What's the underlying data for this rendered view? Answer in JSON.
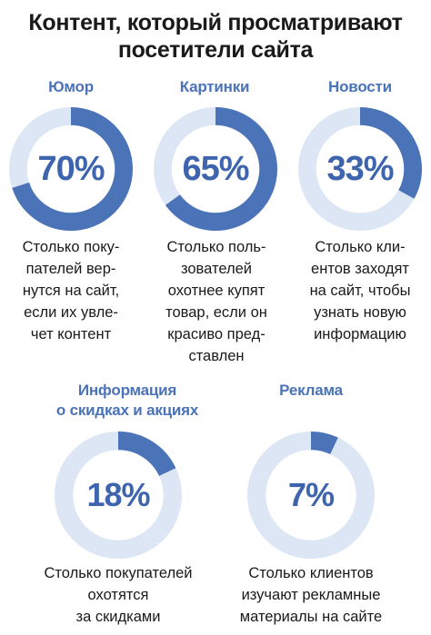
{
  "title": {
    "line1": "Контент, который просматривают",
    "line2": "посетители сайта"
  },
  "colors": {
    "filled": "#4a73b8",
    "track": "#dce6f4",
    "label": "#4a73b8",
    "percent": "#3d64ad"
  },
  "items": [
    {
      "label": "Юмор",
      "percent_text": "70%",
      "description": "Столько поку-\nпателей вер-\nнутся на сайт,\nесли их увле-\nчет контент"
    },
    {
      "label": "Картинки",
      "percent_text": "65%",
      "description": "Столько поль-\nзователей\nохотнее купят\nтовар, если он\nкрасиво пред-\nставлен"
    },
    {
      "label": "Новости",
      "percent_text": "33%",
      "description": "Столько кли-\nентов заходят\nна сайт, чтобы\nузнать новую\nинформацию"
    },
    {
      "label_line1": "Информация",
      "label_line2": "о скидках и акциях",
      "percent_text": "18%",
      "description": "Столько покупателей\nохотятся\nза скидками"
    },
    {
      "label": "Реклама",
      "percent_text": "7%",
      "description": "Столько клиентов\nизучают рекламные\nматериалы на сайте"
    }
  ],
  "chart_data": {
    "type": "pie",
    "categories": [
      "Юмор",
      "Картинки",
      "Новости",
      "Информация о скидках и акциях",
      "Реклама"
    ],
    "values": [
      70,
      65,
      33,
      18,
      7
    ],
    "title": "Контент, который просматривают посетители сайта"
  }
}
